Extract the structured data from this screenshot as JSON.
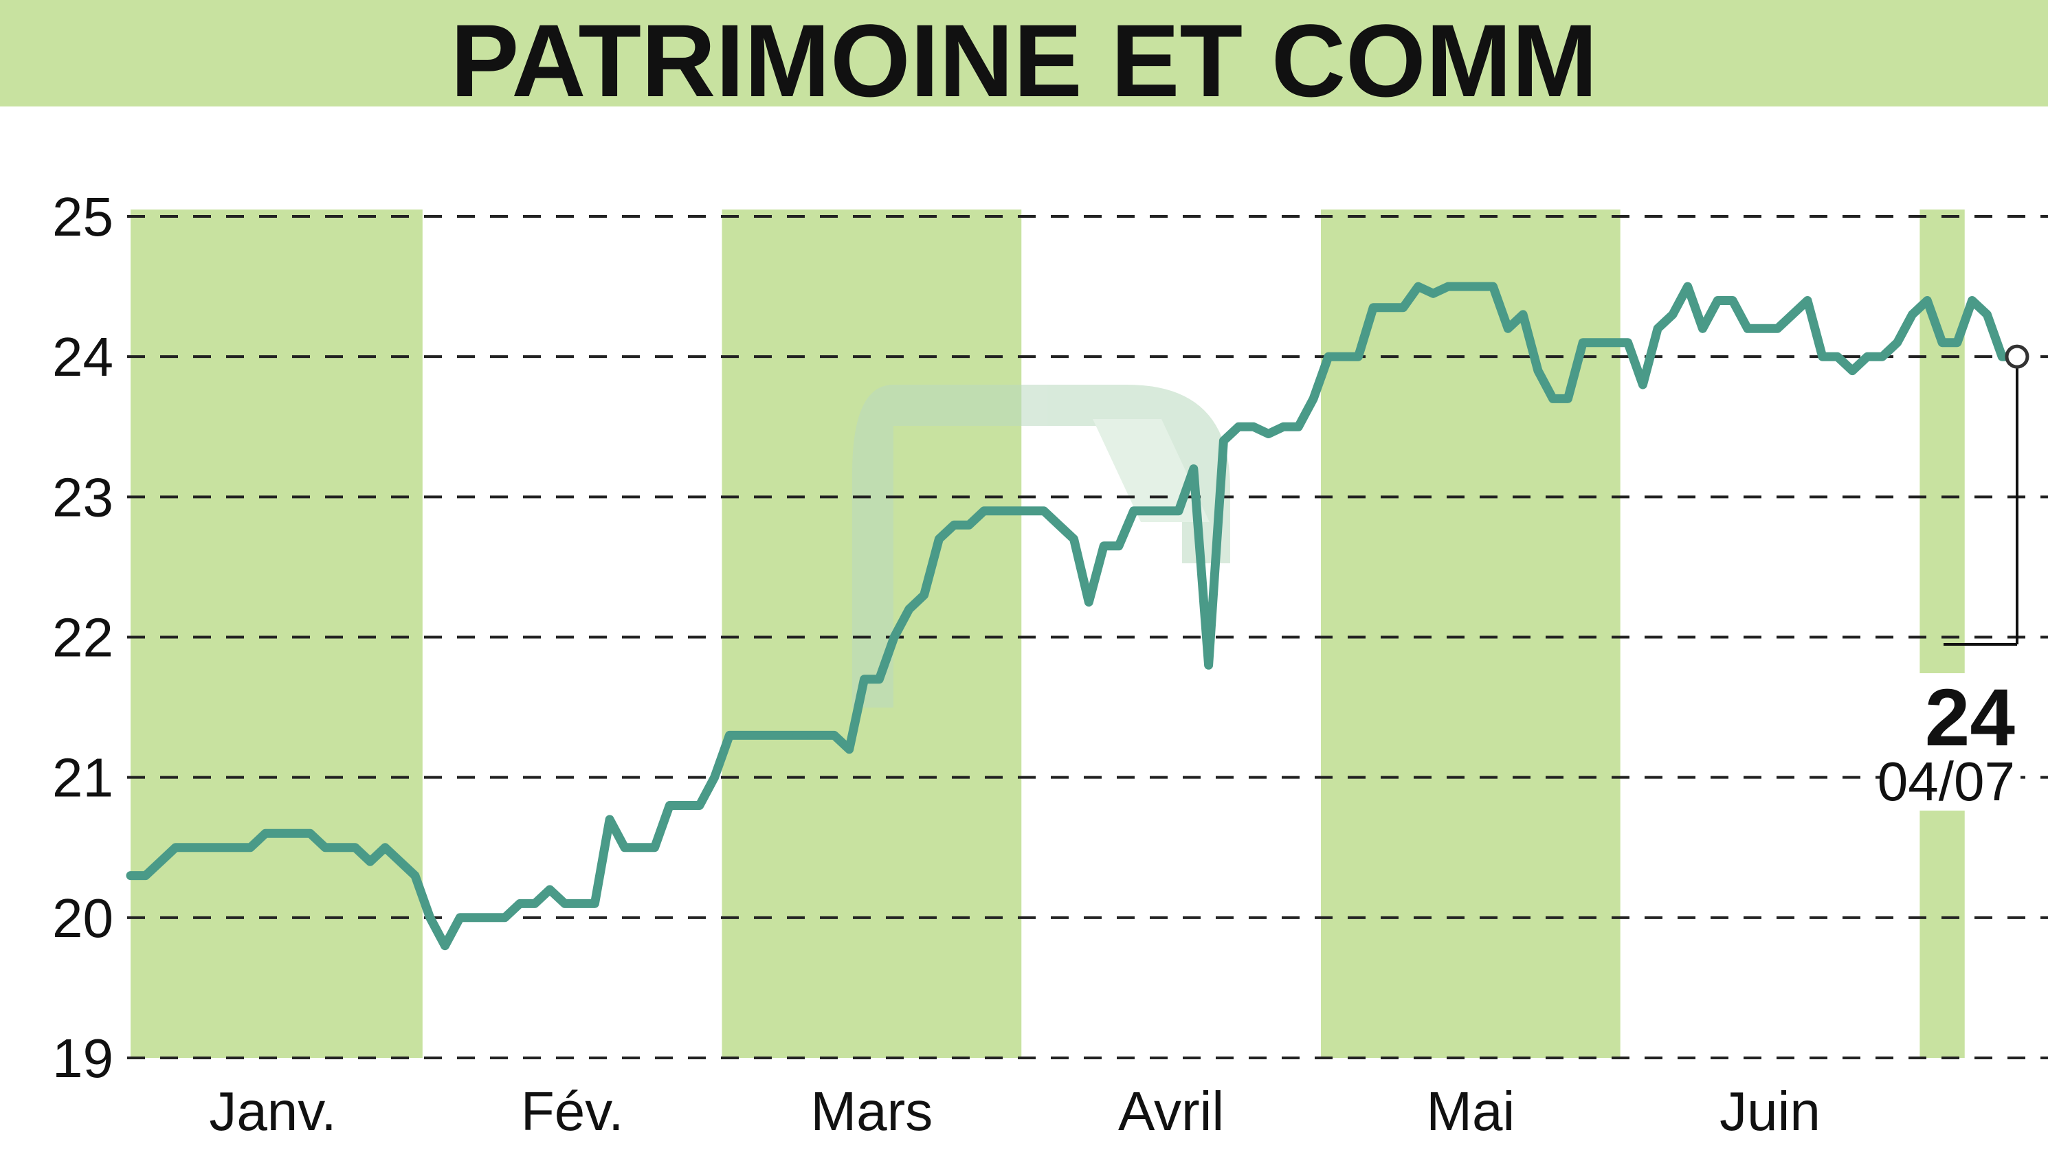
{
  "chart_data": {
    "type": "line",
    "title": "PATRIMOINE ET COMM",
    "xlabel": "",
    "ylabel": "",
    "ylim": [
      19,
      25
    ],
    "y_ticks": [
      "19",
      "20",
      "21",
      "22",
      "23",
      "24",
      "25"
    ],
    "x_ticks": [
      "Janv.",
      "Fév.",
      "Mars",
      "Avril",
      "Mai",
      "Juin"
    ],
    "month_bands": [
      "Janv.",
      "Mars",
      "Mai",
      "Juil."
    ],
    "grid": true,
    "grid_style": "dashed-horizontal",
    "legend": "none",
    "colors": {
      "title_band": "#c8e2a0",
      "month_band": "#c8e2a0",
      "line": "#4a9a88",
      "grid": "#222222",
      "text": "#111111"
    },
    "last_value": "24",
    "last_date": "04/07",
    "series": [
      {
        "x": [
          0,
          1,
          2,
          3,
          4,
          5,
          6,
          7,
          8,
          9,
          10,
          11,
          12,
          13,
          14,
          15,
          16,
          17,
          18,
          19,
          20,
          21,
          22,
          23,
          24,
          25,
          26,
          27,
          28,
          29,
          30,
          31,
          32,
          33,
          34,
          35,
          36,
          37,
          38,
          39,
          40,
          41,
          42,
          43,
          44,
          45,
          46,
          47,
          48,
          49,
          50,
          51,
          52,
          53,
          54,
          55,
          56,
          57,
          58,
          59,
          60,
          61,
          62,
          63,
          64,
          65,
          66,
          67,
          68,
          69,
          70,
          71,
          72,
          73,
          74,
          75,
          76,
          77,
          78,
          79,
          80,
          81,
          82,
          83,
          84,
          85,
          86,
          87,
          88,
          89,
          90,
          91,
          92,
          93,
          94,
          95,
          96,
          97,
          98,
          99,
          100,
          101,
          102,
          103,
          104,
          105,
          106,
          107,
          108,
          109,
          110,
          111,
          112,
          113,
          114,
          115,
          116,
          117,
          118,
          119,
          120,
          121,
          122,
          123,
          124,
          125,
          126
        ],
        "values": [
          20.3,
          20.3,
          20.4,
          20.5,
          20.5,
          20.5,
          20.5,
          20.5,
          20.5,
          20.6,
          20.6,
          20.6,
          20.6,
          20.5,
          20.5,
          20.5,
          20.4,
          20.5,
          20.4,
          20.3,
          20.0,
          19.8,
          20.0,
          20.0,
          20.0,
          20.0,
          20.1,
          20.1,
          20.2,
          20.1,
          20.1,
          20.1,
          20.7,
          20.5,
          20.5,
          20.5,
          20.8,
          20.8,
          20.8,
          21.0,
          21.3,
          21.3,
          21.3,
          21.3,
          21.3,
          21.3,
          21.3,
          21.3,
          21.2,
          21.7,
          21.7,
          22.0,
          22.2,
          22.3,
          22.7,
          22.8,
          22.8,
          22.9,
          22.9,
          22.9,
          22.9,
          22.9,
          22.8,
          22.7,
          22.25,
          22.65,
          22.65,
          22.9,
          22.9,
          22.9,
          22.9,
          23.2,
          21.8,
          23.4,
          23.5,
          23.5,
          23.45,
          23.5,
          23.5,
          23.7,
          24.0,
          24.0,
          24.0,
          24.35,
          24.35,
          24.35,
          24.5,
          24.45,
          24.5,
          24.5,
          24.5,
          24.5,
          24.2,
          24.3,
          23.9,
          23.7,
          23.7,
          24.1,
          24.1,
          24.1,
          24.1,
          23.8,
          24.2,
          24.3,
          24.5,
          24.2,
          24.4,
          24.4,
          24.2,
          24.2,
          24.2,
          24.3,
          24.4,
          24.0,
          24.0,
          23.9,
          24.0,
          24.0,
          24.1,
          24.3,
          24.4,
          24.1,
          24.1,
          24.4,
          24.3,
          24.0,
          24.0
        ]
      }
    ]
  }
}
